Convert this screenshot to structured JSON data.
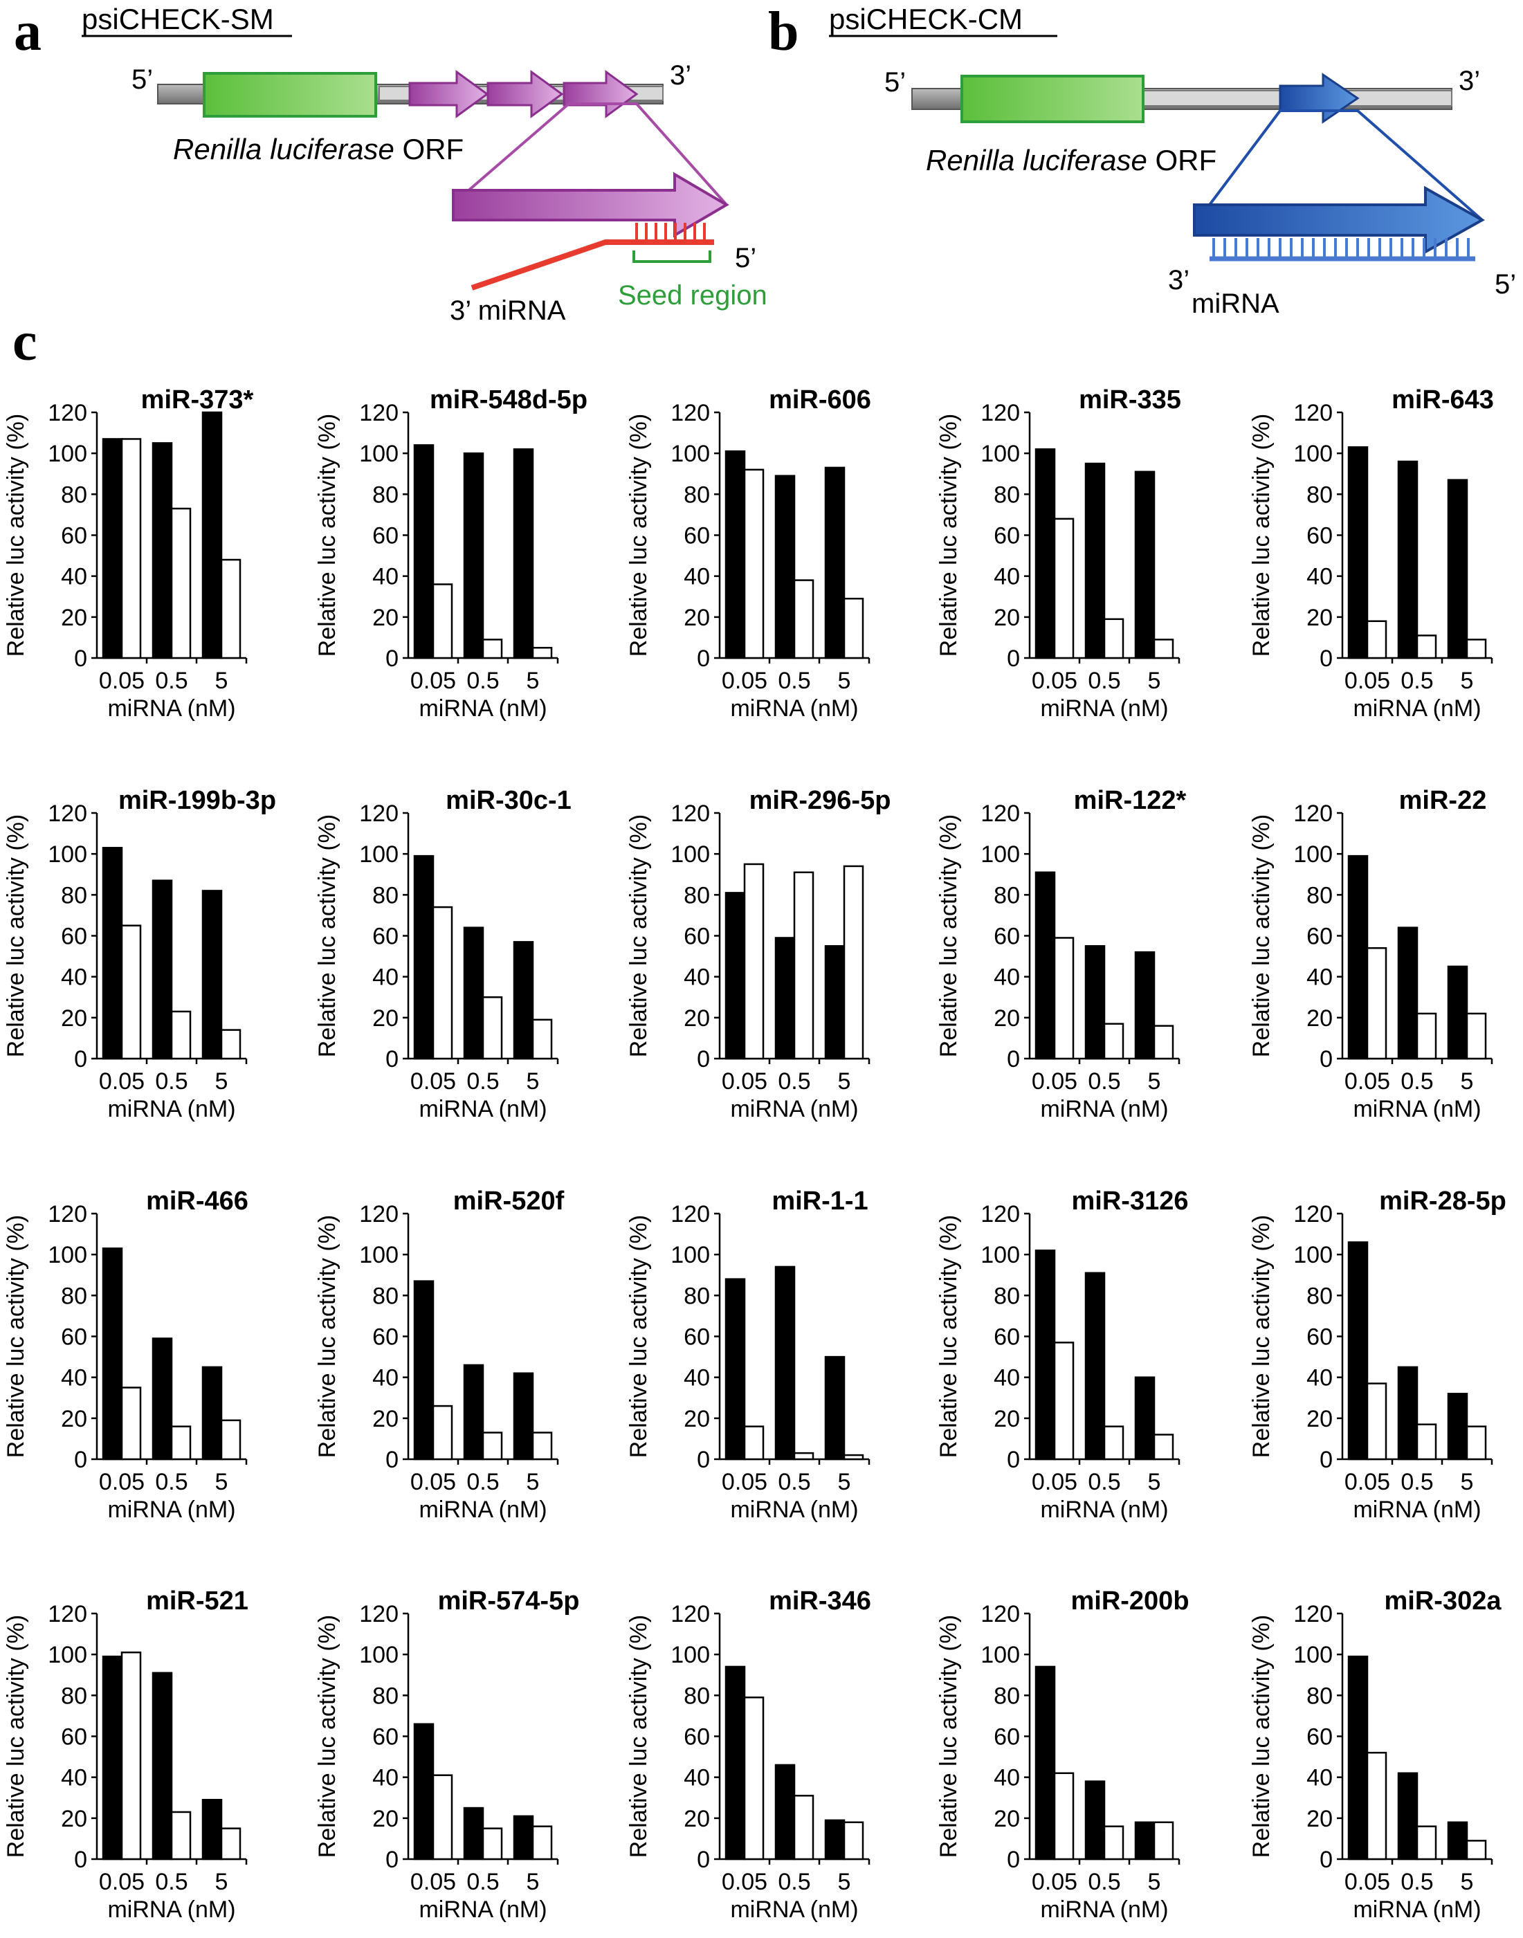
{
  "panels": {
    "a": {
      "letter": "a",
      "title": "psiCHECK-SM",
      "five_prime": "5’",
      "three_prime": "3’",
      "orf_label_italic": "Renilla luciferase",
      "orf_label_plain": " ORF",
      "mirna_label": "3’  miRNA",
      "mirna_five_prime": "5’",
      "seed_label": "Seed region"
    },
    "b": {
      "letter": "b",
      "title": "psiCHECK-CM",
      "five_prime": "5’",
      "three_prime": "3’",
      "orf_label_italic": "Renilla luciferase",
      "orf_label_plain": " ORF",
      "mirna_three_prime": "3’",
      "mirna_label": "miRNA",
      "mirna_five_prime": "5’"
    },
    "c": {
      "letter": "c"
    }
  },
  "colors": {
    "green_box": "#6cc24a",
    "green_border": "#2e9e3a",
    "purple": "#a64ca6",
    "purple_light": "#d9a3dc",
    "red": "#e63b2e",
    "seed_green": "#2e9e3a",
    "blue": "#1f4fa8",
    "blue_light": "#4a84d6",
    "backbone": "#8a8a8a",
    "bar_black": "#000000",
    "bar_white": "#ffffff"
  },
  "chart_data": [
    {
      "type": "bar",
      "title": "miR-373*",
      "categories": [
        "0.05",
        "0.5",
        "5"
      ],
      "series": [
        {
          "name": "psiCHECK-SM",
          "values": [
            107,
            105,
            120
          ]
        },
        {
          "name": "psiCHECK-CM",
          "values": [
            107,
            73,
            48
          ]
        }
      ],
      "xlabel": "miRNA (nM)",
      "ylabel": "Relative luc activity (%)",
      "ylim": [
        0,
        120
      ],
      "yticks": [
        "0",
        "20",
        "40",
        "60",
        "80",
        "100",
        "120"
      ]
    },
    {
      "type": "bar",
      "title": "miR-548d-5p",
      "categories": [
        "0.05",
        "0.5",
        "5"
      ],
      "series": [
        {
          "name": "psiCHECK-SM",
          "values": [
            104,
            100,
            102
          ]
        },
        {
          "name": "psiCHECK-CM",
          "values": [
            36,
            9,
            5
          ]
        }
      ],
      "xlabel": "miRNA (nM)",
      "ylabel": "Relative luc activity (%)",
      "ylim": [
        0,
        120
      ],
      "yticks": [
        "0",
        "20",
        "40",
        "60",
        "80",
        "100",
        "120"
      ]
    },
    {
      "type": "bar",
      "title": "miR-606",
      "categories": [
        "0.05",
        "0.5",
        "5"
      ],
      "series": [
        {
          "name": "psiCHECK-SM",
          "values": [
            101,
            89,
            93
          ]
        },
        {
          "name": "psiCHECK-CM",
          "values": [
            92,
            38,
            29
          ]
        }
      ],
      "xlabel": "miRNA (nM)",
      "ylabel": "Relative luc activity (%)",
      "ylim": [
        0,
        120
      ],
      "yticks": [
        "0",
        "20",
        "40",
        "60",
        "80",
        "100",
        "120"
      ]
    },
    {
      "type": "bar",
      "title": "miR-335",
      "categories": [
        "0.05",
        "0.5",
        "5"
      ],
      "series": [
        {
          "name": "psiCHECK-SM",
          "values": [
            102,
            95,
            91
          ]
        },
        {
          "name": "psiCHECK-CM",
          "values": [
            68,
            19,
            9
          ]
        }
      ],
      "xlabel": "miRNA (nM)",
      "ylabel": "Relative luc activity (%)",
      "ylim": [
        0,
        120
      ],
      "yticks": [
        "0",
        "20",
        "40",
        "60",
        "80",
        "100",
        "120"
      ]
    },
    {
      "type": "bar",
      "title": "miR-643",
      "categories": [
        "0.05",
        "0.5",
        "5"
      ],
      "series": [
        {
          "name": "psiCHECK-SM",
          "values": [
            103,
            96,
            87
          ]
        },
        {
          "name": "psiCHECK-CM",
          "values": [
            18,
            11,
            9
          ]
        }
      ],
      "xlabel": "miRNA (nM)",
      "ylabel": "Relative luc activity (%)",
      "ylim": [
        0,
        120
      ],
      "yticks": [
        "0",
        "20",
        "40",
        "60",
        "80",
        "100",
        "120"
      ]
    },
    {
      "type": "bar",
      "title": "miR-199b-3p",
      "categories": [
        "0.05",
        "0.5",
        "5"
      ],
      "series": [
        {
          "name": "psiCHECK-SM",
          "values": [
            103,
            87,
            82
          ]
        },
        {
          "name": "psiCHECK-CM",
          "values": [
            65,
            23,
            14
          ]
        }
      ],
      "xlabel": "miRNA (nM)",
      "ylabel": "Relative luc activity (%)",
      "ylim": [
        0,
        120
      ],
      "yticks": [
        "0",
        "20",
        "40",
        "60",
        "80",
        "100",
        "120"
      ]
    },
    {
      "type": "bar",
      "title": "miR-30c-1",
      "categories": [
        "0.05",
        "0.5",
        "5"
      ],
      "series": [
        {
          "name": "psiCHECK-SM",
          "values": [
            99,
            64,
            57
          ]
        },
        {
          "name": "psiCHECK-CM",
          "values": [
            74,
            30,
            19
          ]
        }
      ],
      "xlabel": "miRNA (nM)",
      "ylabel": "Relative luc activity (%)",
      "ylim": [
        0,
        120
      ],
      "yticks": [
        "0",
        "20",
        "40",
        "60",
        "80",
        "100",
        "120"
      ]
    },
    {
      "type": "bar",
      "title": "miR-296-5p",
      "categories": [
        "0.05",
        "0.5",
        "5"
      ],
      "series": [
        {
          "name": "psiCHECK-SM",
          "values": [
            81,
            59,
            55
          ]
        },
        {
          "name": "psiCHECK-CM",
          "values": [
            95,
            91,
            94
          ]
        }
      ],
      "xlabel": "miRNA (nM)",
      "ylabel": "Relative luc activity (%)",
      "ylim": [
        0,
        120
      ],
      "yticks": [
        "0",
        "20",
        "40",
        "60",
        "80",
        "100",
        "120"
      ]
    },
    {
      "type": "bar",
      "title": "miR-122*",
      "categories": [
        "0.05",
        "0.5",
        "5"
      ],
      "series": [
        {
          "name": "psiCHECK-SM",
          "values": [
            91,
            55,
            52
          ]
        },
        {
          "name": "psiCHECK-CM",
          "values": [
            59,
            17,
            16
          ]
        }
      ],
      "xlabel": "miRNA (nM)",
      "ylabel": "Relative luc activity (%)",
      "ylim": [
        0,
        120
      ],
      "yticks": [
        "0",
        "20",
        "40",
        "60",
        "80",
        "100",
        "120"
      ]
    },
    {
      "type": "bar",
      "title": "miR-22",
      "categories": [
        "0.05",
        "0.5",
        "5"
      ],
      "series": [
        {
          "name": "psiCHECK-SM",
          "values": [
            99,
            64,
            45
          ]
        },
        {
          "name": "psiCHECK-CM",
          "values": [
            54,
            22,
            22
          ]
        }
      ],
      "xlabel": "miRNA (nM)",
      "ylabel": "Relative luc activity (%)",
      "ylim": [
        0,
        120
      ],
      "yticks": [
        "0",
        "20",
        "40",
        "60",
        "80",
        "100",
        "120"
      ]
    },
    {
      "type": "bar",
      "title": "miR-466",
      "categories": [
        "0.05",
        "0.5",
        "5"
      ],
      "series": [
        {
          "name": "psiCHECK-SM",
          "values": [
            103,
            59,
            45
          ]
        },
        {
          "name": "psiCHECK-CM",
          "values": [
            35,
            16,
            19
          ]
        }
      ],
      "xlabel": "miRNA (nM)",
      "ylabel": "Relative luc activity (%)",
      "ylim": [
        0,
        120
      ],
      "yticks": [
        "0",
        "20",
        "40",
        "60",
        "80",
        "100",
        "120"
      ]
    },
    {
      "type": "bar",
      "title": "miR-520f",
      "categories": [
        "0.05",
        "0.5",
        "5"
      ],
      "series": [
        {
          "name": "psiCHECK-SM",
          "values": [
            87,
            46,
            42
          ]
        },
        {
          "name": "psiCHECK-CM",
          "values": [
            26,
            13,
            13
          ]
        }
      ],
      "xlabel": "miRNA (nM)",
      "ylabel": "Relative luc activity (%)",
      "ylim": [
        0,
        120
      ],
      "yticks": [
        "0",
        "20",
        "40",
        "60",
        "80",
        "100",
        "120"
      ]
    },
    {
      "type": "bar",
      "title": "miR-1-1",
      "categories": [
        "0.05",
        "0.5",
        "5"
      ],
      "series": [
        {
          "name": "psiCHECK-SM",
          "values": [
            88,
            94,
            50
          ]
        },
        {
          "name": "psiCHECK-CM",
          "values": [
            16,
            3,
            2
          ]
        }
      ],
      "xlabel": "miRNA (nM)",
      "ylabel": "Relative luc activity (%)",
      "ylim": [
        0,
        120
      ],
      "yticks": [
        "0",
        "20",
        "40",
        "60",
        "80",
        "100",
        "120"
      ]
    },
    {
      "type": "bar",
      "title": "miR-3126",
      "categories": [
        "0.05",
        "0.5",
        "5"
      ],
      "series": [
        {
          "name": "psiCHECK-SM",
          "values": [
            102,
            91,
            40
          ]
        },
        {
          "name": "psiCHECK-CM",
          "values": [
            57,
            16,
            12
          ]
        }
      ],
      "xlabel": "miRNA (nM)",
      "ylabel": "Relative luc activity (%)",
      "ylim": [
        0,
        120
      ],
      "yticks": [
        "0",
        "20",
        "40",
        "60",
        "80",
        "100",
        "120"
      ]
    },
    {
      "type": "bar",
      "title": "miR-28-5p",
      "categories": [
        "0.05",
        "0.5",
        "5"
      ],
      "series": [
        {
          "name": "psiCHECK-SM",
          "values": [
            106,
            45,
            32
          ]
        },
        {
          "name": "psiCHECK-CM",
          "values": [
            37,
            17,
            16
          ]
        }
      ],
      "xlabel": "miRNA (nM)",
      "ylabel": "Relative luc activity (%)",
      "ylim": [
        0,
        120
      ],
      "yticks": [
        "0",
        "20",
        "40",
        "60",
        "80",
        "100",
        "120"
      ]
    },
    {
      "type": "bar",
      "title": "miR-521",
      "categories": [
        "0.05",
        "0.5",
        "5"
      ],
      "series": [
        {
          "name": "psiCHECK-SM",
          "values": [
            99,
            91,
            29
          ]
        },
        {
          "name": "psiCHECK-CM",
          "values": [
            101,
            23,
            15
          ]
        }
      ],
      "xlabel": "miRNA (nM)",
      "ylabel": "Relative luc activity (%)",
      "ylim": [
        0,
        120
      ],
      "yticks": [
        "0",
        "20",
        "40",
        "60",
        "80",
        "100",
        "120"
      ]
    },
    {
      "type": "bar",
      "title": "miR-574-5p",
      "categories": [
        "0.05",
        "0.5",
        "5"
      ],
      "series": [
        {
          "name": "psiCHECK-SM",
          "values": [
            66,
            25,
            21
          ]
        },
        {
          "name": "psiCHECK-CM",
          "values": [
            41,
            15,
            16
          ]
        }
      ],
      "xlabel": "miRNA (nM)",
      "ylabel": "Relative luc activity (%)",
      "ylim": [
        0,
        120
      ],
      "yticks": [
        "0",
        "20",
        "40",
        "60",
        "80",
        "100",
        "120"
      ]
    },
    {
      "type": "bar",
      "title": "miR-346",
      "categories": [
        "0.05",
        "0.5",
        "5"
      ],
      "series": [
        {
          "name": "psiCHECK-SM",
          "values": [
            94,
            46,
            19
          ]
        },
        {
          "name": "psiCHECK-CM",
          "values": [
            79,
            31,
            18
          ]
        }
      ],
      "xlabel": "miRNA (nM)",
      "ylabel": "Relative luc activity (%)",
      "ylim": [
        0,
        120
      ],
      "yticks": [
        "0",
        "20",
        "40",
        "60",
        "80",
        "100",
        "120"
      ]
    },
    {
      "type": "bar",
      "title": "miR-200b",
      "categories": [
        "0.05",
        "0.5",
        "5"
      ],
      "series": [
        {
          "name": "psiCHECK-SM",
          "values": [
            94,
            38,
            18
          ]
        },
        {
          "name": "psiCHECK-CM",
          "values": [
            42,
            16,
            18
          ]
        }
      ],
      "xlabel": "miRNA (nM)",
      "ylabel": "Relative luc activity (%)",
      "ylim": [
        0,
        120
      ],
      "yticks": [
        "0",
        "20",
        "40",
        "60",
        "80",
        "100",
        "120"
      ]
    },
    {
      "type": "bar",
      "title": "miR-302a",
      "categories": [
        "0.05",
        "0.5",
        "5"
      ],
      "series": [
        {
          "name": "psiCHECK-SM",
          "values": [
            99,
            42,
            18
          ]
        },
        {
          "name": "psiCHECK-CM",
          "values": [
            52,
            16,
            9
          ]
        }
      ],
      "xlabel": "miRNA (nM)",
      "ylabel": "Relative luc activity (%)",
      "ylim": [
        0,
        120
      ],
      "yticks": [
        "0",
        "20",
        "40",
        "60",
        "80",
        "100",
        "120"
      ]
    }
  ]
}
